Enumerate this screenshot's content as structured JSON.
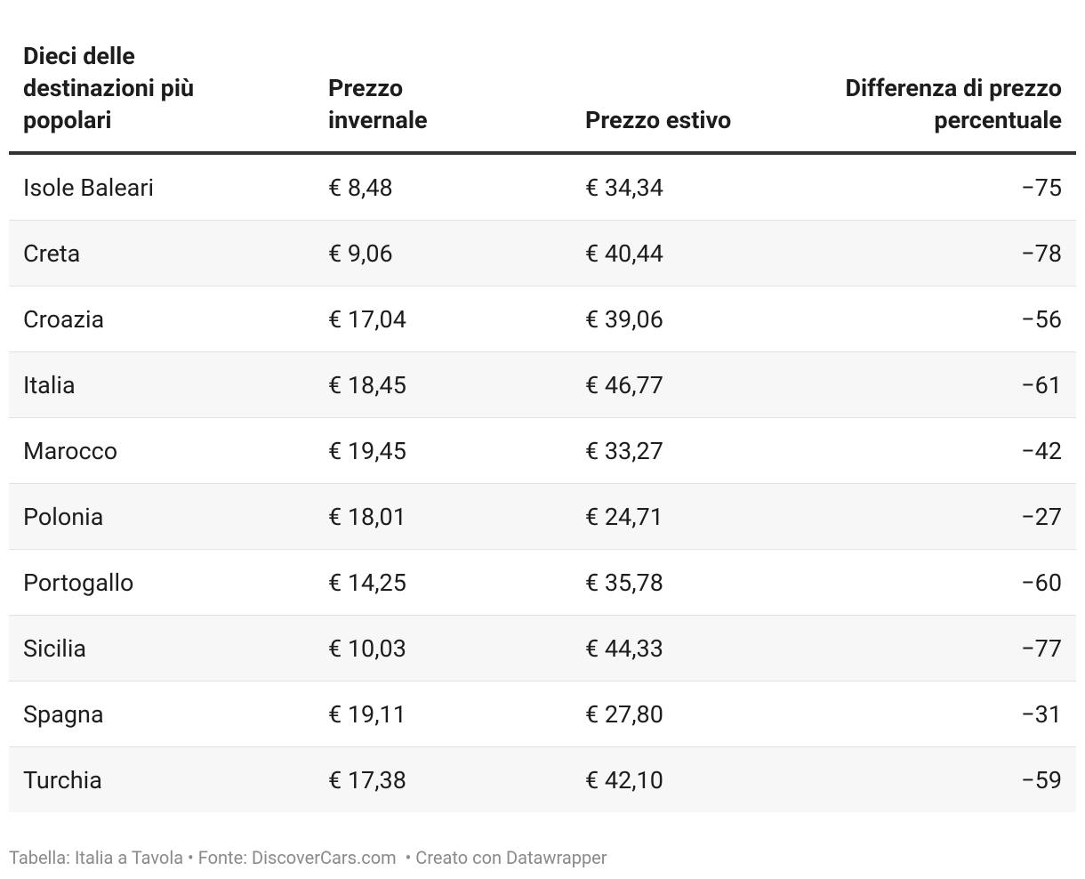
{
  "table": {
    "columns": [
      "Dieci delle destinazioni più popolari",
      "Prezzo invernale",
      "Prezzo estivo",
      "Differenza di prezzo percentuale"
    ],
    "rows": [
      [
        "Isole Baleari",
        "€ 8,48",
        "€ 34,34",
        "−75"
      ],
      [
        "Creta",
        "€ 9,06",
        "€ 40,44",
        "−78"
      ],
      [
        "Croazia",
        "€ 17,04",
        "€ 39,06",
        "−56"
      ],
      [
        "Italia",
        "€ 18,45",
        "€ 46,77",
        "−61"
      ],
      [
        "Marocco",
        "€ 19,45",
        "€ 33,27",
        "−42"
      ],
      [
        "Polonia",
        "€ 18,01",
        "€ 24,71",
        "−27"
      ],
      [
        "Portogallo",
        "€ 14,25",
        "€ 35,78",
        "−60"
      ],
      [
        "Sicilia",
        "€ 10,03",
        "€ 44,33",
        "−77"
      ],
      [
        "Spagna",
        "€ 19,11",
        "€ 27,80",
        "−31"
      ],
      [
        "Turchia",
        "€ 17,38",
        "€ 42,10",
        "−59"
      ]
    ]
  },
  "footer": "Tabella: Italia a Tavola • Fonte: DiscoverCars.com  • Creato con Datawrapper"
}
